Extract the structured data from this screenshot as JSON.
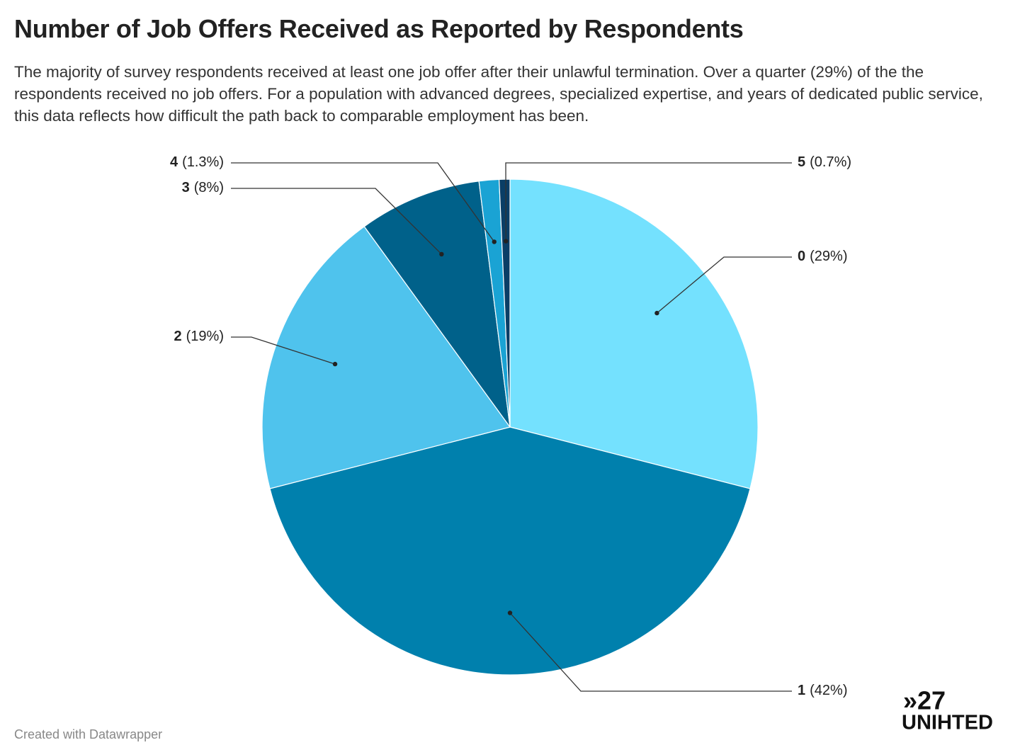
{
  "chart_data": {
    "type": "pie",
    "title": "Number of Job Offers Received as Reported by Respondents",
    "subtitle": "The majority of survey respondents received at least one job offer after their unlawful termination. Over a quarter (29%) of the the respondents received no job offers. For a population with advanced degrees, specialized expertise, and years of dedicated public service, this data reflects how difficult the path back to comparable employment has been.",
    "categories": [
      "0",
      "1",
      "2",
      "3",
      "4",
      "5"
    ],
    "values": [
      29,
      42,
      19,
      8,
      1.3,
      0.7
    ],
    "value_labels": [
      "(29%)",
      "(42%)",
      "(19%)",
      "(8%)",
      "(1.3%)",
      "(0.7%)"
    ],
    "colors": [
      "#74e1fe",
      "#0080ad",
      "#4fc3ed",
      "#00618a",
      "#1aa3d4",
      "#0a3e66"
    ],
    "footer": "Created with Datawrapper",
    "logo": [
      "»27",
      "UNIHTED"
    ]
  }
}
